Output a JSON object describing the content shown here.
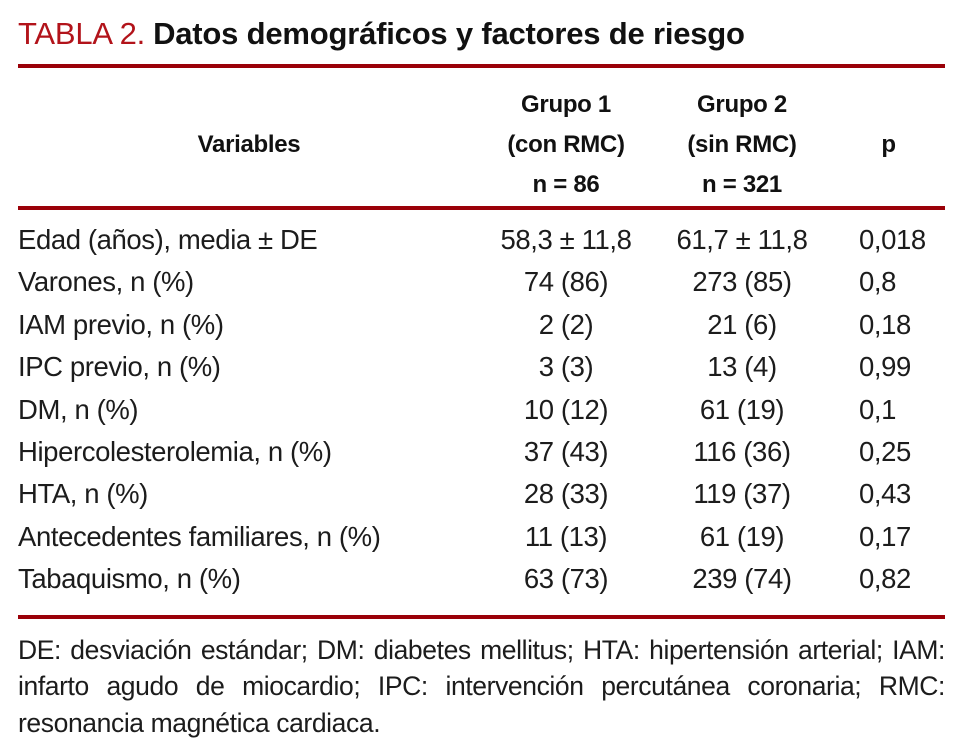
{
  "title": {
    "label": "TABLA 2.",
    "text": "Datos demográficos y factores de riesgo"
  },
  "header": {
    "variables": "Variables",
    "group1": {
      "line1": "Grupo 1",
      "line2": "(con RMC)",
      "line3": "n = 86"
    },
    "group2": {
      "line1": "Grupo 2",
      "line2": "(sin RMC)",
      "line3": "n = 321"
    },
    "p": "p"
  },
  "rows": [
    {
      "variable": "Edad (años), media ± DE",
      "group1": "58,3 ± 11,8",
      "group2": "61,7 ± 11,8",
      "p": "0,018"
    },
    {
      "variable": "Varones, n (%)",
      "group1": "74 (86)",
      "group2": "273 (85)",
      "p": "0,8"
    },
    {
      "variable": "IAM previo, n (%)",
      "group1": "2 (2)",
      "group2": "21 (6)",
      "p": "0,18"
    },
    {
      "variable": "IPC previo, n (%)",
      "group1": "3 (3)",
      "group2": "13 (4)",
      "p": "0,99"
    },
    {
      "variable": "DM, n (%)",
      "group1": "10 (12)",
      "group2": "61 (19)",
      "p": "0,1"
    },
    {
      "variable": "Hipercolesterolemia, n (%)",
      "group1": "37 (43)",
      "group2": "116 (36)",
      "p": "0,25"
    },
    {
      "variable": "HTA, n (%)",
      "group1": "28 (33)",
      "group2": "119 (37)",
      "p": "0,43"
    },
    {
      "variable": "Antecedentes familiares, n (%)",
      "group1": "11 (13)",
      "group2": "61 (19)",
      "p": "0,17"
    },
    {
      "variable": "Tabaquismo, n (%)",
      "group1": "63 (73)",
      "group2": "239 (74)",
      "p": "0,82"
    }
  ],
  "footnote": "DE: desviación estándar; DM: diabetes mellitus; HTA: hipertensión arterial; IAM: infarto agudo de miocardio; IPC: intervención percutánea coronaria; RMC: resonancia magnética cardiaca.",
  "colors": {
    "title_red": "#b2131a",
    "rule_red": "#9a0008"
  }
}
